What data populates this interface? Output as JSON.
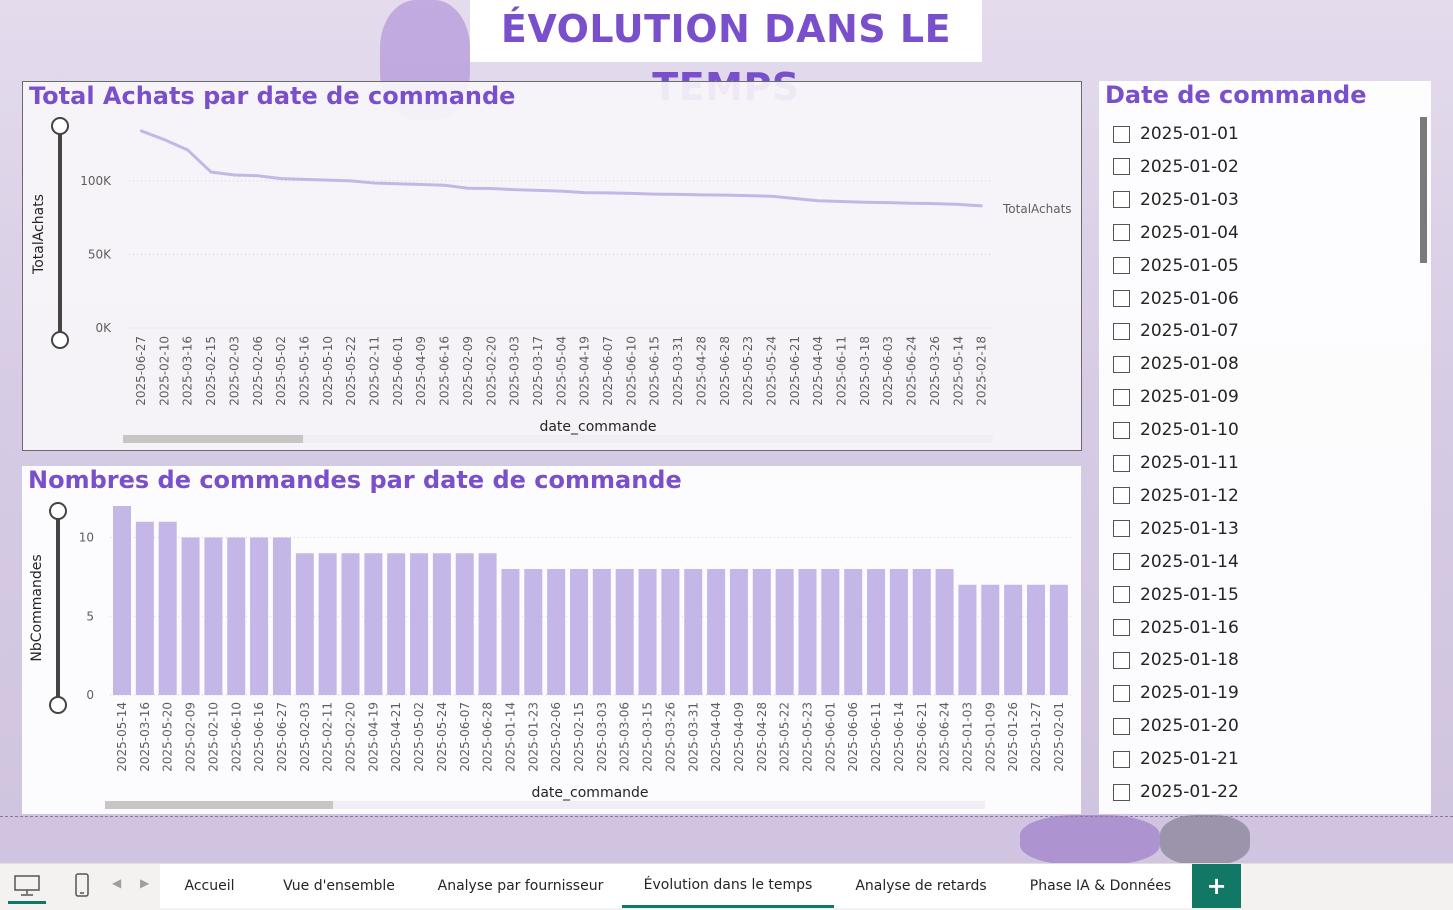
{
  "header": {
    "title": "ÉVOLUTION DANS LE TEMPS"
  },
  "colors": {
    "accent": "#7a4fcc",
    "bar": "#c5b6e8",
    "line": "#c5b6e8",
    "tab_active": "#117865"
  },
  "chart_data": [
    {
      "type": "line",
      "title": "Total Achats par date de commande",
      "xlabel": "date_commande",
      "ylabel": "TotalAchats",
      "series_label": "TotalAchats",
      "ytick_labels": [
        "0K",
        "50K",
        "100K"
      ],
      "ylim": [
        0,
        140000
      ],
      "x": [
        "2025-06-27",
        "2025-02-10",
        "2025-03-16",
        "2025-02-15",
        "2025-02-03",
        "2025-02-06",
        "2025-05-02",
        "2025-05-16",
        "2025-05-10",
        "2025-05-22",
        "2025-02-11",
        "2025-06-01",
        "2025-04-09",
        "2025-06-16",
        "2025-02-09",
        "2025-02-20",
        "2025-03-03",
        "2025-03-17",
        "2025-05-04",
        "2025-04-19",
        "2025-06-07",
        "2025-06-10",
        "2025-06-15",
        "2025-03-31",
        "2025-04-28",
        "2025-06-28",
        "2025-05-23",
        "2025-05-24",
        "2025-06-21",
        "2025-04-04",
        "2025-06-11",
        "2025-03-18",
        "2025-06-03",
        "2025-06-24",
        "2025-03-26",
        "2025-05-14",
        "2025-02-18"
      ],
      "values": [
        134000,
        128000,
        121000,
        106000,
        104000,
        103500,
        101500,
        101000,
        100500,
        100000,
        98500,
        98000,
        97500,
        97000,
        95000,
        94800,
        94000,
        93500,
        93000,
        92000,
        91800,
        91500,
        91000,
        90800,
        90500,
        90300,
        90000,
        89500,
        88000,
        86500,
        86000,
        85500,
        85200,
        84800,
        84500,
        84000,
        83000
      ]
    },
    {
      "type": "bar",
      "title": "Nombres de commandes par date de commande",
      "xlabel": "date_commande",
      "ylabel": "NbCommandes",
      "ytick_labels": [
        "0",
        "5",
        "10"
      ],
      "ylim": [
        0,
        12
      ],
      "categories": [
        "2025-05-14",
        "2025-03-16",
        "2025-05-20",
        "2025-02-09",
        "2025-02-10",
        "2025-06-10",
        "2025-06-16",
        "2025-06-27",
        "2025-02-03",
        "2025-02-11",
        "2025-02-20",
        "2025-04-19",
        "2025-04-21",
        "2025-05-02",
        "2025-05-24",
        "2025-06-07",
        "2025-06-28",
        "2025-01-14",
        "2025-01-23",
        "2025-02-06",
        "2025-02-15",
        "2025-03-03",
        "2025-03-06",
        "2025-03-15",
        "2025-03-26",
        "2025-03-31",
        "2025-04-04",
        "2025-04-09",
        "2025-04-28",
        "2025-05-22",
        "2025-05-23",
        "2025-06-01",
        "2025-06-06",
        "2025-06-11",
        "2025-06-14",
        "2025-06-21",
        "2025-06-24",
        "2025-01-03",
        "2025-01-09",
        "2025-01-26",
        "2025-01-27",
        "2025-02-01"
      ],
      "values": [
        12,
        11,
        11,
        10,
        10,
        10,
        10,
        10,
        9,
        9,
        9,
        9,
        9,
        9,
        9,
        9,
        9,
        8,
        8,
        8,
        8,
        8,
        8,
        8,
        8,
        8,
        8,
        8,
        8,
        8,
        8,
        8,
        8,
        8,
        8,
        8,
        8,
        7,
        7,
        7,
        7,
        7
      ]
    }
  ],
  "slicer": {
    "title": "Date de commande",
    "items": [
      "2025-01-01",
      "2025-01-02",
      "2025-01-03",
      "2025-01-04",
      "2025-01-05",
      "2025-01-06",
      "2025-01-07",
      "2025-01-08",
      "2025-01-09",
      "2025-01-10",
      "2025-01-11",
      "2025-01-12",
      "2025-01-13",
      "2025-01-14",
      "2025-01-15",
      "2025-01-16",
      "2025-01-18",
      "2025-01-19",
      "2025-01-20",
      "2025-01-21",
      "2025-01-22"
    ]
  },
  "tabs": {
    "items": [
      "Accueil",
      "Vue d'ensemble",
      "Analyse par fournisseur",
      "Évolution dans le temps",
      "Analyse de retards",
      "Phase IA & Données"
    ],
    "active": "Évolution dans le temps",
    "add_label": "+"
  }
}
